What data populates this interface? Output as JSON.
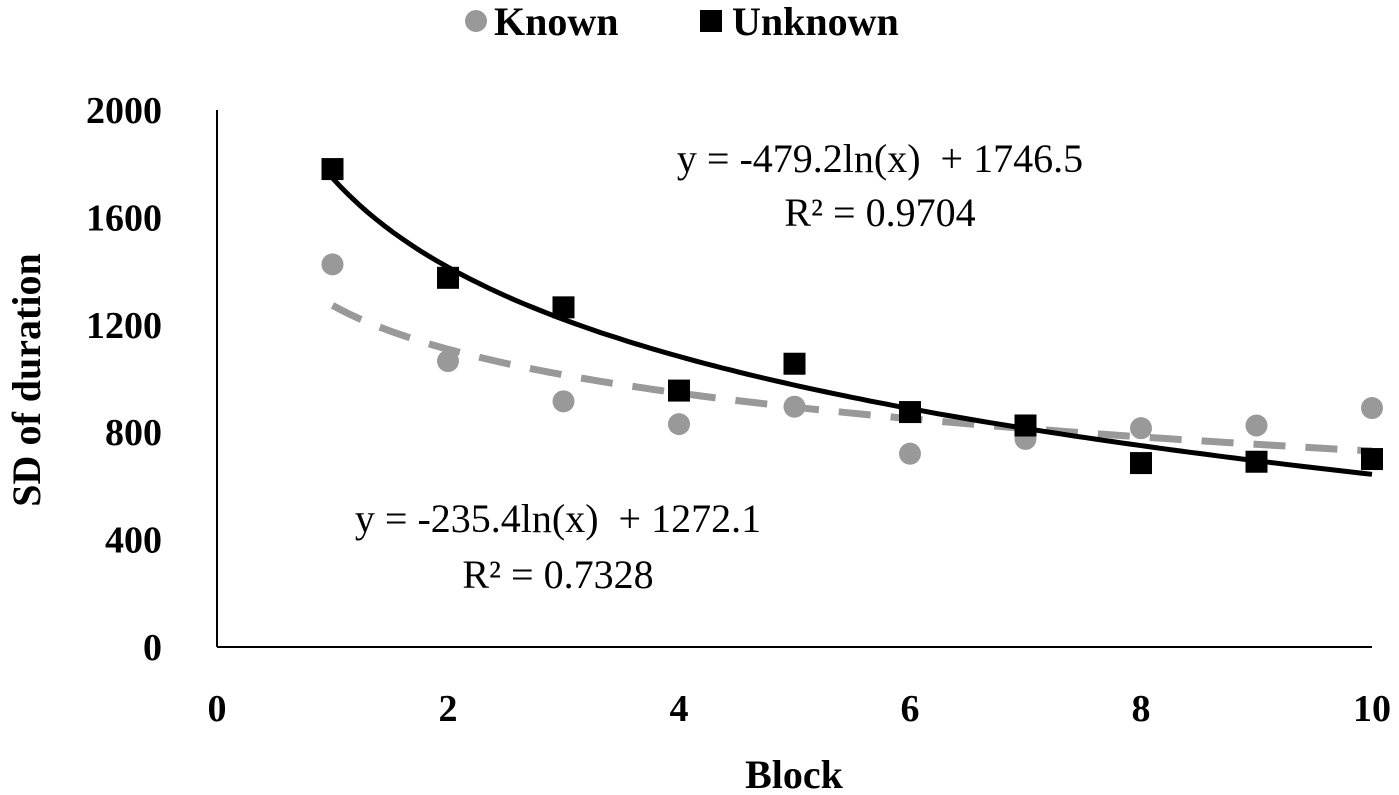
{
  "chart_data": {
    "type": "scatter",
    "xlabel": "Block",
    "ylabel": "SD of duration",
    "xlim": [
      0,
      10
    ],
    "ylim": [
      0,
      2000
    ],
    "x_ticks": [
      "0",
      "2",
      "4",
      "6",
      "8",
      "10"
    ],
    "y_ticks": [
      "0",
      "400",
      "800",
      "1200",
      "1600",
      "2000"
    ],
    "grid": false,
    "legend": {
      "placement": "top-center"
    },
    "series": [
      {
        "name": "Known",
        "marker": "circle",
        "color": "#999999",
        "x": [
          1,
          2,
          3,
          4,
          5,
          6,
          7,
          8,
          9,
          10
        ],
        "y": [
          1425,
          1065,
          915,
          830,
          895,
          720,
          775,
          815,
          825,
          890
        ],
        "trendline": {
          "type": "log",
          "a": -235.4,
          "b": 1272.1,
          "style": "dashed",
          "color": "#999999",
          "equation": "y = -235.4ln(x)  + 1272.1",
          "r2_label": "R² = 0.7328"
        }
      },
      {
        "name": "Unknown",
        "marker": "square",
        "color": "#000000",
        "x": [
          1,
          2,
          3,
          4,
          5,
          6,
          7,
          8,
          9,
          10
        ],
        "y": [
          1780,
          1375,
          1265,
          955,
          1055,
          875,
          825,
          685,
          690,
          700
        ],
        "trendline": {
          "type": "log",
          "a": -479.2,
          "b": 1746.5,
          "style": "solid",
          "color": "#000000",
          "equation": "y = -479.2ln(x)  + 1746.5",
          "r2_label": "R² = 0.9704"
        }
      }
    ]
  }
}
